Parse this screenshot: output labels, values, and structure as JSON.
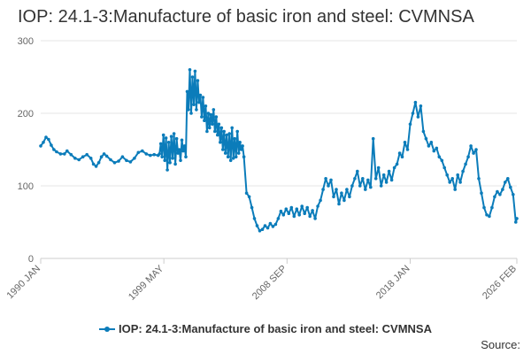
{
  "chart_data": {
    "type": "line",
    "title": "IOP: 24.1-3:Manufacture of basic iron and steel: CVMNSA",
    "xlabel": "",
    "ylabel": "",
    "ylim": [
      0,
      300
    ],
    "yticks": [
      0,
      100,
      200,
      300
    ],
    "xlim": [
      "1990 JAN",
      "2026 FEB"
    ],
    "xticks": [
      {
        "label": "1990 JAN",
        "year": 1990.0
      },
      {
        "label": "1999 MAY",
        "year": 1999.333
      },
      {
        "label": "2008 SEP",
        "year": 2008.667
      },
      {
        "label": "2018 JAN",
        "year": 2018.0
      },
      {
        "label": "2026 FEB",
        "year": 2026.083
      }
    ],
    "grid": "horizontal",
    "legend_position": "bottom-center",
    "series": [
      {
        "name": "IOP: 24.1-3:Manufacture of basic iron and steel: CVMNSA",
        "color": "#0b7cba",
        "points": [
          [
            1990.0,
            155
          ],
          [
            1990.2,
            160
          ],
          [
            1990.4,
            167
          ],
          [
            1990.6,
            164
          ],
          [
            1990.8,
            156
          ],
          [
            1991.0,
            150
          ],
          [
            1991.2,
            147
          ],
          [
            1991.5,
            144
          ],
          [
            1991.8,
            144
          ],
          [
            1992.0,
            148
          ],
          [
            1992.3,
            143
          ],
          [
            1992.6,
            138
          ],
          [
            1992.9,
            136
          ],
          [
            1993.2,
            140
          ],
          [
            1993.5,
            143
          ],
          [
            1993.8,
            138
          ],
          [
            1994.0,
            130
          ],
          [
            1994.2,
            127
          ],
          [
            1994.4,
            132
          ],
          [
            1994.6,
            140
          ],
          [
            1994.8,
            144
          ],
          [
            1995.0,
            141
          ],
          [
            1995.3,
            136
          ],
          [
            1995.6,
            132
          ],
          [
            1995.9,
            134
          ],
          [
            1996.2,
            140
          ],
          [
            1996.5,
            135
          ],
          [
            1996.8,
            133
          ],
          [
            1997.1,
            138
          ],
          [
            1997.4,
            146
          ],
          [
            1997.7,
            148
          ],
          [
            1998.0,
            144
          ],
          [
            1998.3,
            142
          ],
          [
            1998.6,
            143
          ],
          [
            1998.9,
            142
          ],
          [
            1999.0,
            144
          ],
          [
            1999.1,
            158
          ],
          [
            1999.2,
            140
          ],
          [
            1999.3,
            170
          ],
          [
            1999.4,
            135
          ],
          [
            1999.5,
            166
          ],
          [
            1999.6,
            122
          ],
          [
            1999.7,
            160
          ],
          [
            1999.8,
            132
          ],
          [
            1999.9,
            168
          ],
          [
            2000.0,
            138
          ],
          [
            2000.1,
            172
          ],
          [
            2000.2,
            130
          ],
          [
            2000.3,
            165
          ],
          [
            2000.4,
            145
          ],
          [
            2000.5,
            150
          ],
          [
            2000.6,
            135
          ],
          [
            2000.7,
            163
          ],
          [
            2000.8,
            148
          ],
          [
            2000.9,
            155
          ],
          [
            2001.0,
            140
          ],
          [
            2001.1,
            230
          ],
          [
            2001.2,
            205
          ],
          [
            2001.3,
            260
          ],
          [
            2001.4,
            200
          ],
          [
            2001.5,
            250
          ],
          [
            2001.6,
            212
          ],
          [
            2001.7,
            258
          ],
          [
            2001.8,
            205
          ],
          [
            2001.9,
            245
          ],
          [
            2002.0,
            215
          ],
          [
            2002.1,
            225
          ],
          [
            2002.2,
            195
          ],
          [
            2002.3,
            222
          ],
          [
            2002.4,
            190
          ],
          [
            2002.5,
            210
          ],
          [
            2002.6,
            175
          ],
          [
            2002.7,
            200
          ],
          [
            2002.8,
            180
          ],
          [
            2002.9,
            198
          ],
          [
            2003.0,
            185
          ],
          [
            2003.1,
            205
          ],
          [
            2003.2,
            175
          ],
          [
            2003.3,
            195
          ],
          [
            2003.4,
            170
          ],
          [
            2003.5,
            185
          ],
          [
            2003.6,
            160
          ],
          [
            2003.7,
            180
          ],
          [
            2003.8,
            150
          ],
          [
            2003.9,
            175
          ],
          [
            2004.0,
            145
          ],
          [
            2004.1,
            170
          ],
          [
            2004.2,
            140
          ],
          [
            2004.3,
            172
          ],
          [
            2004.4,
            135
          ],
          [
            2004.5,
            180
          ],
          [
            2004.6,
            138
          ],
          [
            2004.7,
            165
          ],
          [
            2004.8,
            140
          ],
          [
            2004.9,
            175
          ],
          [
            2005.0,
            145
          ],
          [
            2005.1,
            160
          ],
          [
            2005.2,
            150
          ],
          [
            2005.3,
            155
          ],
          [
            2005.4,
            140
          ],
          [
            2005.6,
            90
          ],
          [
            2005.8,
            85
          ],
          [
            2006.0,
            70
          ],
          [
            2006.2,
            55
          ],
          [
            2006.4,
            45
          ],
          [
            2006.6,
            38
          ],
          [
            2006.8,
            40
          ],
          [
            2007.0,
            45
          ],
          [
            2007.2,
            42
          ],
          [
            2007.4,
            48
          ],
          [
            2007.6,
            44
          ],
          [
            2007.8,
            47
          ],
          [
            2008.0,
            55
          ],
          [
            2008.2,
            65
          ],
          [
            2008.4,
            60
          ],
          [
            2008.6,
            68
          ],
          [
            2008.8,
            62
          ],
          [
            2009.0,
            70
          ],
          [
            2009.2,
            58
          ],
          [
            2009.4,
            68
          ],
          [
            2009.6,
            60
          ],
          [
            2009.8,
            72
          ],
          [
            2010.0,
            62
          ],
          [
            2010.2,
            70
          ],
          [
            2010.4,
            58
          ],
          [
            2010.6,
            66
          ],
          [
            2010.8,
            55
          ],
          [
            2011.0,
            72
          ],
          [
            2011.2,
            80
          ],
          [
            2011.4,
            95
          ],
          [
            2011.6,
            110
          ],
          [
            2011.8,
            100
          ],
          [
            2012.0,
            108
          ],
          [
            2012.2,
            85
          ],
          [
            2012.4,
            95
          ],
          [
            2012.6,
            75
          ],
          [
            2012.8,
            90
          ],
          [
            2013.0,
            80
          ],
          [
            2013.2,
            95
          ],
          [
            2013.4,
            85
          ],
          [
            2013.6,
            100
          ],
          [
            2013.8,
            110
          ],
          [
            2014.0,
            120
          ],
          [
            2014.2,
            100
          ],
          [
            2014.4,
            110
          ],
          [
            2014.6,
            95
          ],
          [
            2014.8,
            108
          ],
          [
            2015.0,
            98
          ],
          [
            2015.2,
            165
          ],
          [
            2015.4,
            110
          ],
          [
            2015.6,
            125
          ],
          [
            2015.8,
            100
          ],
          [
            2016.0,
            115
          ],
          [
            2016.2,
            105
          ],
          [
            2016.4,
            120
          ],
          [
            2016.6,
            108
          ],
          [
            2016.8,
            125
          ],
          [
            2017.0,
            130
          ],
          [
            2017.2,
            145
          ],
          [
            2017.4,
            140
          ],
          [
            2017.6,
            160
          ],
          [
            2017.8,
            150
          ],
          [
            2018.0,
            185
          ],
          [
            2018.2,
            200
          ],
          [
            2018.4,
            215
          ],
          [
            2018.6,
            195
          ],
          [
            2018.8,
            210
          ],
          [
            2019.0,
            175
          ],
          [
            2019.2,
            165
          ],
          [
            2019.4,
            155
          ],
          [
            2019.6,
            160
          ],
          [
            2019.8,
            148
          ],
          [
            2020.0,
            152
          ],
          [
            2020.2,
            140
          ],
          [
            2020.4,
            135
          ],
          [
            2020.6,
            125
          ],
          [
            2020.8,
            115
          ],
          [
            2021.0,
            105
          ],
          [
            2021.2,
            110
          ],
          [
            2021.4,
            95
          ],
          [
            2021.6,
            115
          ],
          [
            2021.8,
            105
          ],
          [
            2022.0,
            120
          ],
          [
            2022.2,
            130
          ],
          [
            2022.4,
            140
          ],
          [
            2022.6,
            155
          ],
          [
            2022.8,
            145
          ],
          [
            2023.0,
            150
          ],
          [
            2023.2,
            110
          ],
          [
            2023.4,
            90
          ],
          [
            2023.6,
            70
          ],
          [
            2023.8,
            60
          ],
          [
            2024.0,
            58
          ],
          [
            2024.2,
            70
          ],
          [
            2024.4,
            85
          ],
          [
            2024.6,
            92
          ],
          [
            2024.8,
            88
          ],
          [
            2025.0,
            95
          ],
          [
            2025.2,
            105
          ],
          [
            2025.4,
            110
          ],
          [
            2025.6,
            98
          ],
          [
            2025.8,
            88
          ],
          [
            2026.0,
            50
          ],
          [
            2026.083,
            55
          ]
        ]
      }
    ]
  },
  "legend": {
    "label": "IOP: 24.1-3:Manufacture of basic iron and steel: CVMNSA"
  },
  "footer": {
    "source_label": "Source:"
  }
}
